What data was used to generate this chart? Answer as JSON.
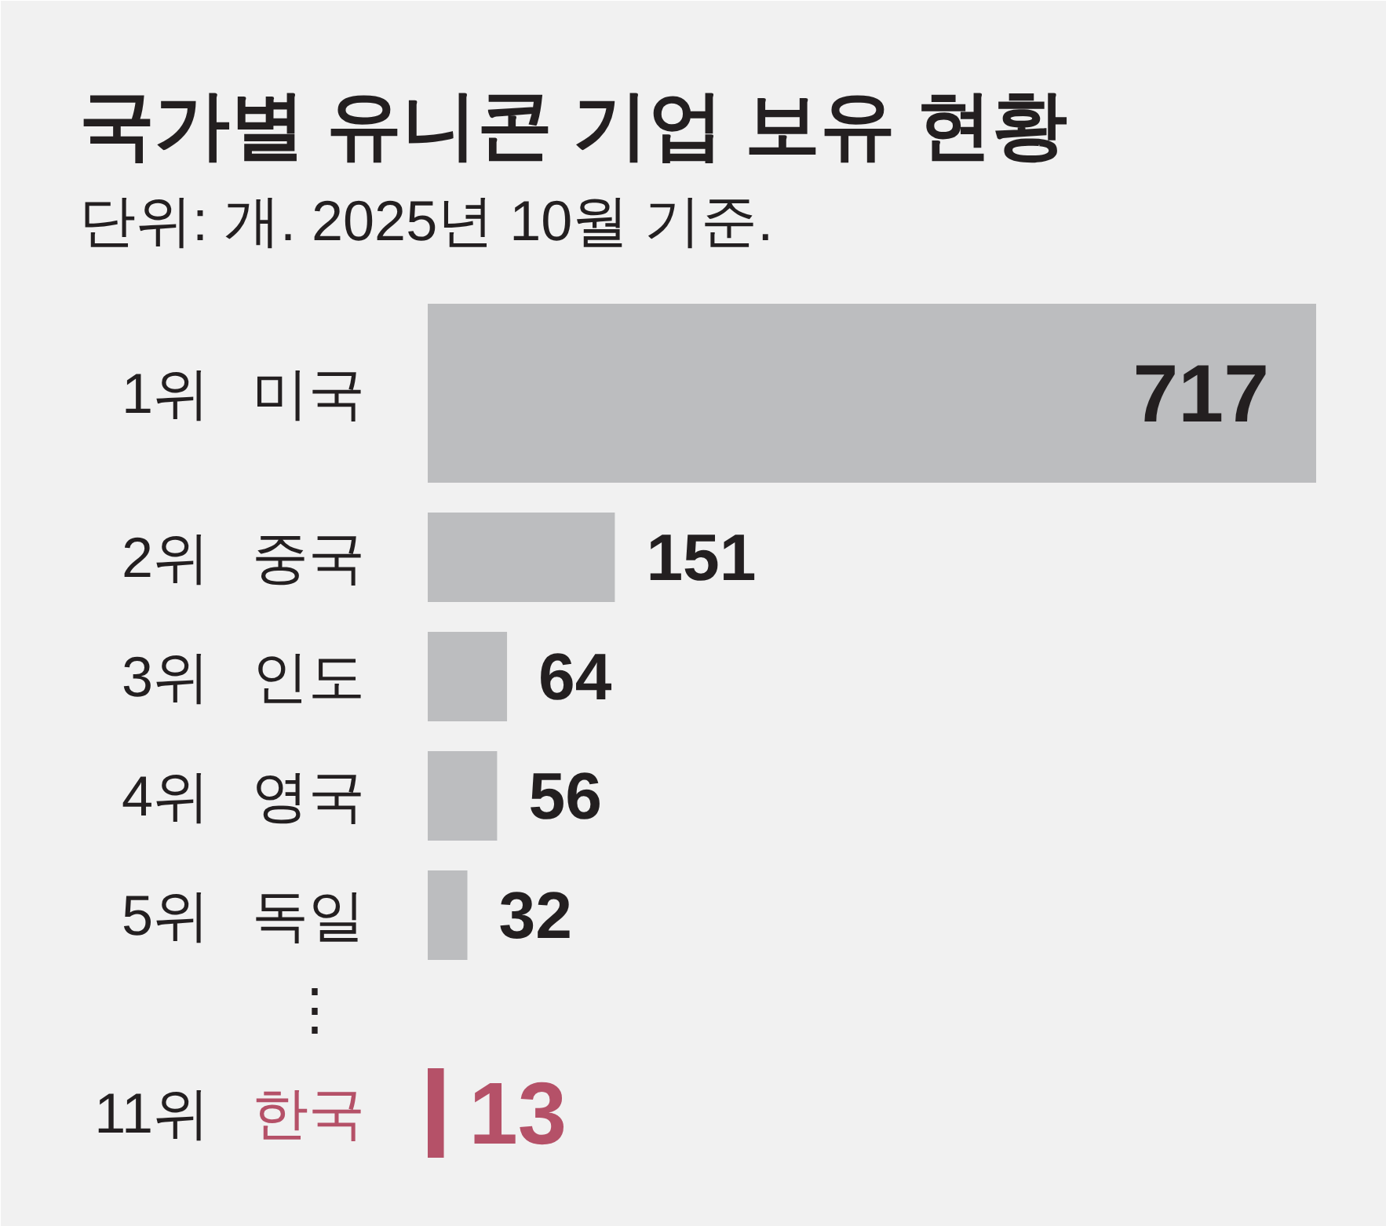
{
  "chart_data": {
    "type": "bar",
    "orientation": "horizontal",
    "title": "국가별 유니콘 기업 보유 현황",
    "subtitle": "단위: 개. 2025년 10월 기준.",
    "categories": [
      "1위 미국",
      "2위 중국",
      "3위 인도",
      "4위 영국",
      "5위 독일",
      "⋮",
      "11위 한국"
    ],
    "values": [
      717,
      151,
      64,
      56,
      32,
      null,
      13
    ],
    "colors": [
      "#bcbdbf",
      "#bcbdbf",
      "#bcbdbf",
      "#bcbdbf",
      "#bcbdbf",
      "#bcbdbf",
      "#b55168"
    ],
    "data_labels": true,
    "tick_labels": "y"
  }
}
